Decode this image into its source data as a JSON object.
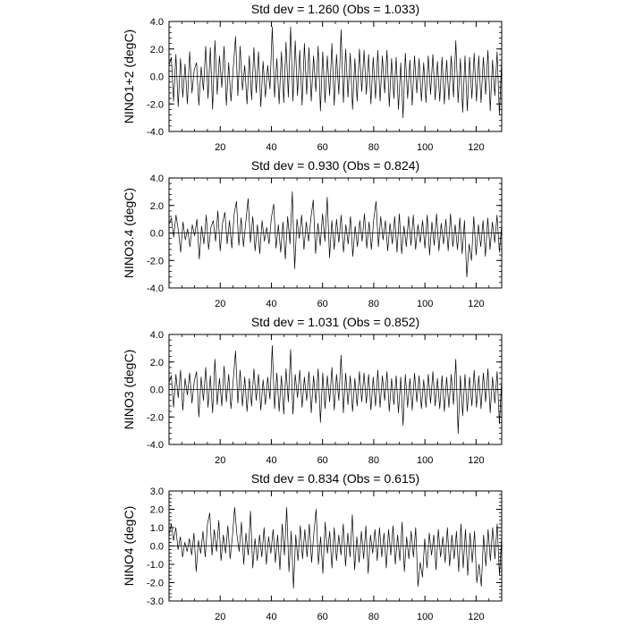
{
  "chart_data": [
    {
      "type": "line",
      "title": "Std dev = 1.260 (Obs = 1.033)",
      "ylabel": "NINO1+2 (degC)",
      "xlabel": "",
      "xlim": [
        0,
        130
      ],
      "ylim": [
        -4.0,
        4.0
      ],
      "yticks": [
        -4.0,
        -2.0,
        0.0,
        2.0,
        4.0
      ],
      "ytick_labels": [
        "-4.0",
        "-2.0",
        "0.0",
        "2.0",
        "4.0"
      ],
      "xticks": [
        20,
        40,
        60,
        80,
        100,
        120
      ],
      "xtick_labels": [
        "20",
        "40",
        "60",
        "80",
        "100",
        "120"
      ],
      "zero_line": true,
      "series": [
        {
          "name": "NINO1+2",
          "values": [
            0.8,
            1.4,
            -1.8,
            1.6,
            -2.2,
            1.3,
            -1.5,
            0.9,
            -2.0,
            1.8,
            -1.2,
            0.5,
            1.0,
            -2.1,
            0.7,
            -1.0,
            2.2,
            -1.6,
            2.1,
            -2.4,
            2.6,
            -1.3,
            1.5,
            -0.8,
            2.2,
            -2.1,
            1.0,
            -1.8,
            0.6,
            2.9,
            -1.4,
            2.2,
            -1.0,
            0.8,
            -2.0,
            1.5,
            -1.7,
            2.1,
            -1.2,
            1.8,
            -2.2,
            1.1,
            -1.5,
            0.8,
            -0.9,
            3.6,
            -1.5,
            1.3,
            -2.0,
            1.8,
            -1.9,
            2.5,
            -1.5,
            3.6,
            -1.8,
            2.6,
            -1.4,
            1.9,
            -2.1,
            2.4,
            -1.3,
            2.1,
            -1.8,
            1.5,
            -1.1,
            2.2,
            -2.5,
            1.8,
            -1.9,
            1.5,
            -1.4,
            2.4,
            -2.1,
            1.6,
            -1.3,
            3.4,
            -1.9,
            2.0,
            -1.5,
            1.7,
            -2.4,
            1.3,
            -1.8,
            2.0,
            -1.1,
            1.9,
            -1.3,
            1.6,
            -2.0,
            1.4,
            -1.6,
            1.9,
            -1.8,
            1.5,
            -1.2,
            1.9,
            -2.2,
            1.3,
            -1.6,
            1.4,
            -2.4,
            1.0,
            -3.0,
            1.7,
            -1.6,
            1.2,
            -2.1,
            1.5,
            -1.2,
            1.3,
            -1.8,
            1.0,
            -1.9,
            1.5,
            -1.3,
            1.6,
            -1.7,
            1.1,
            -1.8,
            1.4,
            -2.0,
            1.2,
            -1.7,
            1.5,
            -1.5,
            2.6,
            -1.9,
            1.3,
            -2.6,
            1.5,
            -2.5,
            1.4,
            -1.6,
            1.7,
            -1.8,
            1.5,
            -1.9,
            1.4,
            -1.3,
            1.9,
            -2.5,
            1.2,
            -1.4,
            1.8,
            -2.8,
            1.3
          ]
        }
      ]
    },
    {
      "type": "line",
      "title": "Std dev = 0.930 (Obs = 0.824)",
      "ylabel": "NINO3.4 (degC)",
      "xlabel": "",
      "xlim": [
        0,
        130
      ],
      "ylim": [
        -4.0,
        4.0
      ],
      "yticks": [
        -4.0,
        -2.0,
        0.0,
        2.0,
        4.0
      ],
      "ytick_labels": [
        "-4.0",
        "-2.0",
        "0.0",
        "2.0",
        "4.0"
      ],
      "xticks": [
        20,
        40,
        60,
        80,
        100,
        120
      ],
      "xtick_labels": [
        "20",
        "40",
        "60",
        "80",
        "100",
        "120"
      ],
      "zero_line": true,
      "series": [
        {
          "name": "NINO3.4",
          "values": [
            0.6,
            1.1,
            -0.3,
            1.3,
            0.2,
            -1.4,
            0.8,
            -0.5,
            0.3,
            -1.0,
            0.6,
            -0.2,
            1.0,
            -1.9,
            0.5,
            -0.8,
            1.3,
            -1.2,
            0.4,
            0.9,
            -0.6,
            1.6,
            -1.3,
            0.7,
            1.5,
            -0.8,
            0.9,
            -1.1,
            1.4,
            2.3,
            -0.9,
            1.1,
            -1.0,
            0.8,
            2.5,
            -0.7,
            1.2,
            -1.3,
            0.6,
            -1.5,
            0.9,
            -0.6,
            0.4,
            -0.8,
            1.1,
            2.1,
            -1.1,
            0.6,
            -1.4,
            0.8,
            -1.9,
            1.2,
            -0.8,
            3.0,
            -2.6,
            1.0,
            -0.4,
            1.3,
            -1.2,
            0.8,
            -0.6,
            1.1,
            2.4,
            -1.5,
            0.7,
            -0.9,
            1.4,
            -0.6,
            2.6,
            -1.8,
            0.9,
            -1.2,
            1.0,
            -0.7,
            1.3,
            -1.4,
            0.6,
            -0.8,
            1.2,
            -1.7,
            0.5,
            -1.0,
            0.9,
            -0.6,
            1.4,
            -1.1,
            0.8,
            -1.2,
            1.0,
            2.3,
            -1.0,
            1.2,
            -0.5,
            0.9,
            -1.3,
            0.7,
            -0.8,
            1.2,
            -1.4,
            1.4,
            -1.5,
            0.5,
            -1.0,
            1.2,
            -0.9,
            1.3,
            -1.2,
            0.6,
            -0.7,
            0.9,
            -1.1,
            1.3,
            -1.6,
            0.8,
            -0.9,
            1.4,
            -1.3,
            0.7,
            -0.8,
            1.0,
            -1.3,
            1.4,
            -1.0,
            0.6,
            -1.2,
            1.1,
            -1.5,
            0.9,
            -3.2,
            -0.8,
            -2.0,
            1.2,
            -1.6,
            0.6,
            -1.0,
            0.9,
            -1.7,
            1.1,
            -1.2,
            0.8,
            -0.7,
            1.3,
            -1.4,
            0.6
          ]
        }
      ]
    },
    {
      "type": "line",
      "title": "Std dev = 1.031 (Obs = 0.852)",
      "ylabel": "NINO3 (degC)",
      "xlabel": "",
      "xlim": [
        0,
        130
      ],
      "ylim": [
        -4.0,
        4.0
      ],
      "yticks": [
        -4.0,
        -2.0,
        0.0,
        2.0,
        4.0
      ],
      "ytick_labels": [
        "-4.0",
        "-2.0",
        "0.0",
        "2.0",
        "4.0"
      ],
      "xticks": [
        20,
        40,
        60,
        80,
        100,
        120
      ],
      "xtick_labels": [
        "20",
        "40",
        "60",
        "80",
        "100",
        "120"
      ],
      "zero_line": true,
      "series": [
        {
          "name": "NINO3",
          "values": [
            0.5,
            1.0,
            -1.3,
            1.1,
            -0.6,
            1.4,
            -1.5,
            0.8,
            -0.4,
            1.2,
            -1.0,
            0.6,
            1.3,
            -2.0,
            0.9,
            -0.8,
            1.6,
            -1.3,
            1.0,
            -1.7,
            2.2,
            -1.1,
            0.8,
            -1.2,
            1.7,
            -0.9,
            1.1,
            -1.4,
            0.7,
            2.8,
            -1.0,
            1.4,
            -1.2,
            0.9,
            -1.6,
            0.8,
            -1.2,
            1.5,
            -0.8,
            1.1,
            -1.5,
            0.7,
            -1.1,
            0.9,
            -0.7,
            3.2,
            -1.4,
            1.2,
            -1.6,
            1.0,
            -1.8,
            1.5,
            -0.9,
            2.9,
            -1.8,
            1.1,
            -0.6,
            1.4,
            -1.3,
            0.9,
            -0.8,
            1.3,
            -1.7,
            1.0,
            -1.0,
            1.5,
            -2.4,
            1.2,
            -1.4,
            1.0,
            -0.9,
            1.6,
            -1.5,
            1.1,
            -0.8,
            2.5,
            -1.7,
            1.2,
            -1.1,
            1.0,
            -1.6,
            0.8,
            -1.2,
            1.3,
            -0.9,
            1.2,
            -1.0,
            1.1,
            -1.5,
            0.9,
            -1.2,
            1.4,
            -1.3,
            1.0,
            -0.8,
            1.3,
            -1.6,
            0.8,
            -1.1,
            1.0,
            -1.7,
            0.9,
            -2.6,
            1.1,
            -1.3,
            0.8,
            -1.5,
            1.2,
            -0.9,
            1.0,
            -1.4,
            0.7,
            -1.3,
            1.1,
            -1.0,
            1.3,
            -1.2,
            0.8,
            -1.4,
            1.0,
            -1.6,
            0.9,
            -1.3,
            1.1,
            -1.1,
            2.2,
            -3.2,
            1.0,
            -1.9,
            1.1,
            -1.6,
            0.9,
            -1.2,
            1.4,
            -1.3,
            1.0,
            -1.4,
            1.2,
            -0.9,
            1.5,
            -1.7,
            0.9,
            -1.0,
            1.3,
            -2.5,
            0.8
          ]
        }
      ]
    },
    {
      "type": "line",
      "title": "Std dev = 0.834 (Obs = 0.615)",
      "ylabel": "NINO4 (degC)",
      "xlabel": "",
      "xlim": [
        0,
        130
      ],
      "ylim": [
        -3.0,
        3.0
      ],
      "yticks": [
        -3.0,
        -2.0,
        -1.0,
        0.0,
        1.0,
        2.0,
        3.0
      ],
      "ytick_labels": [
        "-3.0",
        "-2.0",
        "-1.0",
        "0.0",
        "1.0",
        "2.0",
        "3.0"
      ],
      "xticks": [
        20,
        40,
        60,
        80,
        100,
        120
      ],
      "xtick_labels": [
        "20",
        "40",
        "60",
        "80",
        "100",
        "120"
      ],
      "zero_line": true,
      "series": [
        {
          "name": "NINO4",
          "values": [
            0.6,
            1.2,
            0.3,
            1.0,
            -0.2,
            0.5,
            -0.6,
            0.2,
            -0.3,
            0.4,
            -0.5,
            0.7,
            -1.4,
            0.3,
            -0.4,
            0.8,
            -0.6,
            1.2,
            1.8,
            -0.5,
            0.9,
            -0.3,
            1.4,
            -0.8,
            0.6,
            -0.4,
            1.1,
            -0.7,
            0.5,
            2.1,
            0.6,
            -0.3,
            1.3,
            -1.0,
            0.7,
            -0.5,
            1.9,
            -1.2,
            0.4,
            -0.8,
            0.6,
            -0.6,
            1.0,
            -1.0,
            0.5,
            -0.4,
            0.9,
            -0.9,
            0.6,
            -1.3,
            1.2,
            -0.5,
            2.1,
            -1.4,
            0.8,
            -2.3,
            0.6,
            -0.8,
            1.1,
            -0.7,
            0.9,
            -0.6,
            1.2,
            -0.9,
            0.7,
            2.0,
            -1.0,
            0.5,
            -1.5,
            1.3,
            -0.4,
            0.8,
            -1.2,
            1.0,
            -0.8,
            0.6,
            -0.5,
            1.2,
            -1.1,
            0.7,
            -0.6,
            1.7,
            -1.3,
            0.5,
            -0.9,
            0.8,
            -0.7,
            1.1,
            -1.5,
            0.6,
            -0.4,
            0.9,
            -0.8,
            1.0,
            -0.6,
            0.7,
            -1.2,
            0.9,
            -0.5,
            1.1,
            -1.0,
            0.6,
            -0.8,
            1.3,
            -1.4,
            0.5,
            -0.7,
            0.8,
            -0.6,
            1.0,
            -2.2,
            -0.9,
            -1.7,
            0.4,
            -1.2,
            0.7,
            -0.5,
            0.6,
            -1.3,
            0.9,
            -0.6,
            0.5,
            -0.9,
            1.0,
            -1.1,
            0.6,
            -0.7,
            0.8,
            -1.4,
            1.2,
            -1.2,
            0.9,
            -1.6,
            0.7,
            -0.9,
            0.8,
            -2.0,
            -1.0,
            -2.2,
            0.6,
            -1.1,
            0.9,
            -0.8,
            1.0,
            -0.7,
            1.2,
            -1.6,
            0.5
          ]
        }
      ]
    }
  ]
}
